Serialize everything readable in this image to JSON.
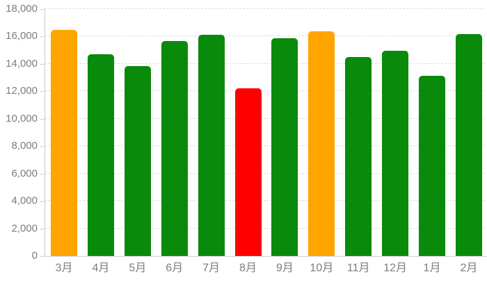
{
  "chart_data": {
    "type": "bar",
    "title": "",
    "xlabel": "",
    "ylabel": "",
    "categories": [
      "3月",
      "4月",
      "5月",
      "6月",
      "7月",
      "8月",
      "9月",
      "10月",
      "11月",
      "12月",
      "1月",
      "2月"
    ],
    "values": [
      16500,
      14700,
      13850,
      15650,
      16100,
      12200,
      15850,
      16400,
      14500,
      14950,
      13150,
      16200
    ],
    "bar_colors": [
      "#ffa500",
      "#0a8a0a",
      "#0a8a0a",
      "#0a8a0a",
      "#0a8a0a",
      "#ff0000",
      "#0a8a0a",
      "#ffa500",
      "#0a8a0a",
      "#0a8a0a",
      "#0a8a0a",
      "#0a8a0a"
    ],
    "ylim": [
      0,
      18000
    ],
    "ytick_interval": 2000,
    "ytick_labels": [
      "0",
      "2,000",
      "4,000",
      "6,000",
      "8,000",
      "10,000",
      "12,000",
      "14,000",
      "16,000",
      "18,000"
    ],
    "grid": true,
    "legend": "none"
  },
  "colors": {
    "bar_green": "#0a8a0a",
    "bar_orange": "#ffa500",
    "bar_red": "#ff0000",
    "axis_line": "#cccccc",
    "gridline": "#dcdcdc",
    "label_text": "#7d7d7d",
    "background": "#ffffff"
  }
}
